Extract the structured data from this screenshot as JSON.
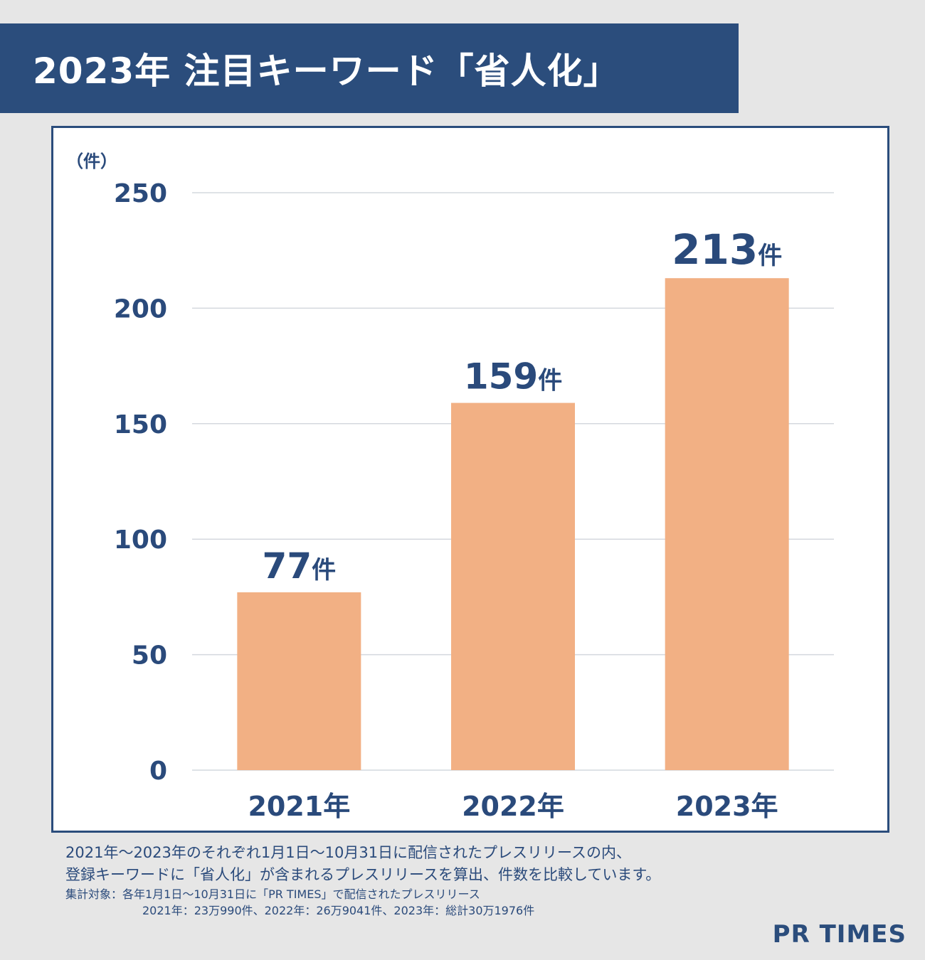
{
  "header": {
    "title": "2023年 注目キーワード「省人化」"
  },
  "chart_data": {
    "type": "bar",
    "title": "",
    "ylabel": "（件）",
    "xlabel": "",
    "categories": [
      "2021年",
      "2022年",
      "2023年"
    ],
    "values": [
      77,
      159,
      213
    ],
    "data_labels": [
      {
        "number": "77",
        "unit": "件"
      },
      {
        "number": "159",
        "unit": "件"
      },
      {
        "number": "213",
        "unit": "件"
      }
    ],
    "ylim": [
      0,
      250
    ],
    "yticks": [
      0,
      50,
      100,
      150,
      200,
      250
    ],
    "grid": true,
    "legend": "none",
    "bar_color": "#f2b084",
    "text_color": "#2a4a7b"
  },
  "notes": {
    "line1": "2021年～2023年のそれぞれ1月1日～10月31日に配信されたプレスリリースの内、",
    "line2": "登録キーワードに「省人化」が含まれるプレスリリースを算出、件数を比較しています。",
    "line3": "集計対象：各年1月1日～10月31日に「PR TIMES」で配信されたプレスリリース",
    "line4": "2021年：23万990件、2022年：26万9041件、2023年：総計30万1976件"
  },
  "brand": {
    "logo_text": "PR TIMES",
    "color": "#2b4d7c"
  }
}
